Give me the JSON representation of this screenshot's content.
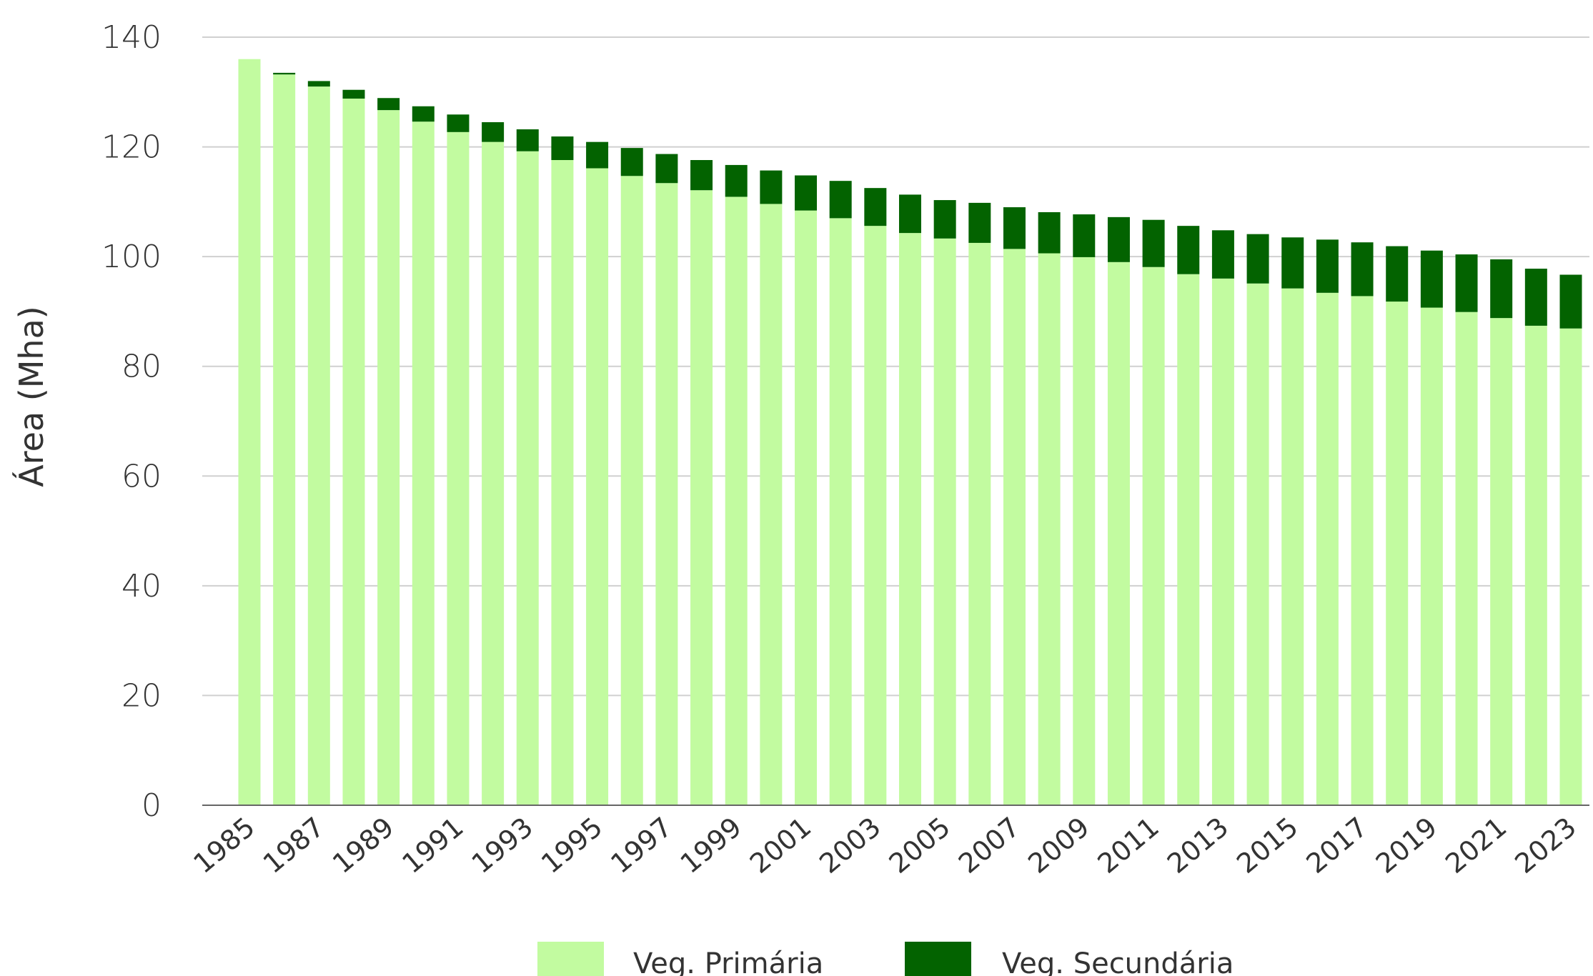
{
  "chart_data": {
    "type": "bar",
    "stacked": true,
    "title": "",
    "xlabel": "",
    "ylabel": "Área (Mha)",
    "ylim": [
      0,
      140
    ],
    "yticks": [
      0,
      20,
      40,
      60,
      80,
      100,
      120,
      140
    ],
    "grid": true,
    "legend_position": "bottom",
    "categories": [
      "1985",
      "1986",
      "1987",
      "1988",
      "1989",
      "1990",
      "1991",
      "1992",
      "1993",
      "1994",
      "1995",
      "1996",
      "1997",
      "1998",
      "1999",
      "2000",
      "2001",
      "2002",
      "2003",
      "2004",
      "2005",
      "2006",
      "2007",
      "2008",
      "2009",
      "2010",
      "2011",
      "2012",
      "2013",
      "2014",
      "2015",
      "2016",
      "2017",
      "2018",
      "2019",
      "2020",
      "2021",
      "2022",
      "2023"
    ],
    "xtick_labels": [
      "1985",
      "1987",
      "1989",
      "1991",
      "1993",
      "1995",
      "1997",
      "1999",
      "2001",
      "2003",
      "2005",
      "2007",
      "2009",
      "2011",
      "2013",
      "2015",
      "2017",
      "2019",
      "2021",
      "2023"
    ],
    "series": [
      {
        "name": "Veg. Primária",
        "color": "#c2fba0",
        "values": [
          136.0,
          133.2,
          131.0,
          128.8,
          126.7,
          124.6,
          122.7,
          120.9,
          119.2,
          117.6,
          116.1,
          114.7,
          113.4,
          112.1,
          110.9,
          109.6,
          108.4,
          107.0,
          105.6,
          104.3,
          103.3,
          102.5,
          101.4,
          100.6,
          99.9,
          99.0,
          98.1,
          96.8,
          96.0,
          95.1,
          94.2,
          93.4,
          92.8,
          91.8,
          90.7,
          89.9,
          88.8,
          87.4,
          86.9
        ]
      },
      {
        "name": "Veg. Secundária",
        "color": "#036300",
        "values": [
          0.0,
          0.3,
          1.0,
          1.6,
          2.2,
          2.8,
          3.2,
          3.6,
          4.0,
          4.3,
          4.8,
          5.1,
          5.3,
          5.5,
          5.8,
          6.1,
          6.4,
          6.8,
          6.9,
          7.0,
          7.0,
          7.3,
          7.6,
          7.5,
          7.8,
          8.2,
          8.6,
          8.8,
          8.8,
          9.0,
          9.3,
          9.7,
          9.8,
          10.1,
          10.4,
          10.5,
          10.7,
          10.4,
          9.8
        ]
      }
    ]
  }
}
